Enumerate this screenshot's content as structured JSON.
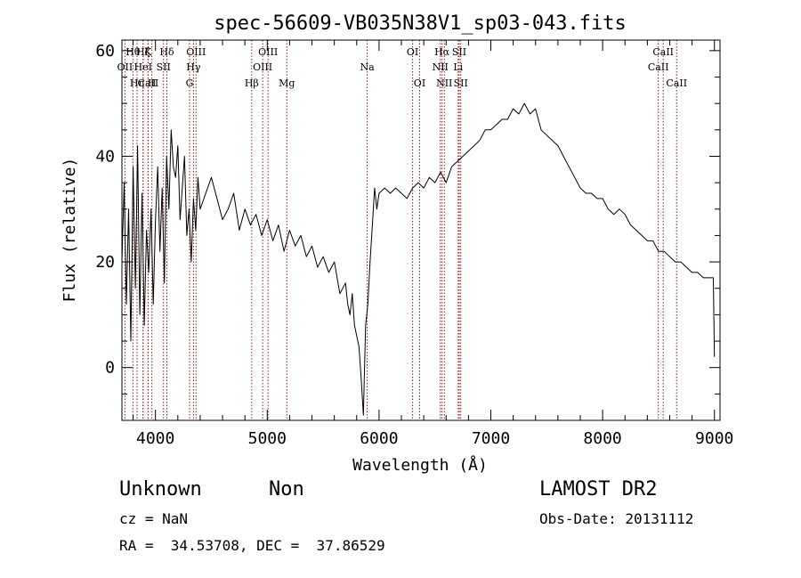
{
  "chart_data": {
    "type": "line",
    "title": "spec-56609-VB035N38V1_sp03-043.fits",
    "xlabel": "Wavelength (Å)",
    "ylabel": "Flux (relative)",
    "xlim": [
      3700,
      9050
    ],
    "ylim": [
      -10,
      62
    ],
    "x_ticks": [
      4000,
      5000,
      6000,
      7000,
      8000,
      9000
    ],
    "y_ticks": [
      0,
      20,
      40,
      60
    ],
    "x_minor_step": 200,
    "y_minor_step": 5,
    "grid": false,
    "line_color": "#000000",
    "marker_color": "#8b1a1a",
    "series": [
      {
        "x": [
          3700,
          3720,
          3740,
          3760,
          3780,
          3800,
          3820,
          3840,
          3860,
          3880,
          3900,
          3920,
          3940,
          3960,
          3980,
          4000,
          4020,
          4040,
          4060,
          4080,
          4100,
          4120,
          4140,
          4160,
          4180,
          4200,
          4220,
          4240,
          4260,
          4280,
          4300,
          4320,
          4340,
          4360,
          4380,
          4400,
          4450,
          4500,
          4550,
          4600,
          4650,
          4700,
          4750,
          4800,
          4850,
          4900,
          4950,
          5000,
          5050,
          5100,
          5150,
          5200,
          5250,
          5300,
          5350,
          5400,
          5450,
          5500,
          5550,
          5600,
          5650,
          5700,
          5720,
          5740,
          5760,
          5780,
          5800,
          5820,
          5840,
          5860,
          5880,
          5900,
          5920,
          5940,
          5960,
          5980,
          6000,
          6050,
          6100,
          6150,
          6200,
          6250,
          6300,
          6350,
          6400,
          6450,
          6500,
          6550,
          6600,
          6650,
          6700,
          6750,
          6800,
          6850,
          6900,
          6950,
          7000,
          7050,
          7100,
          7150,
          7200,
          7250,
          7300,
          7350,
          7400,
          7450,
          7500,
          7550,
          7600,
          7650,
          7700,
          7750,
          7800,
          7850,
          7900,
          7950,
          8000,
          8050,
          8100,
          8150,
          8200,
          8250,
          8300,
          8350,
          8400,
          8450,
          8500,
          8550,
          8600,
          8650,
          8700,
          8750,
          8800,
          8850,
          8900,
          8950,
          8990,
          9000
        ],
        "y": [
          20,
          35,
          12,
          30,
          5,
          38,
          15,
          42,
          10,
          33,
          8,
          26,
          18,
          30,
          12,
          28,
          38,
          22,
          34,
          16,
          40,
          30,
          45,
          38,
          36,
          42,
          28,
          34,
          40,
          25,
          30,
          20,
          32,
          26,
          36,
          30,
          33,
          36,
          32,
          28,
          30,
          33,
          26,
          30,
          27,
          29,
          25,
          28,
          24,
          27,
          22,
          26,
          23,
          25,
          21,
          23,
          19,
          21,
          18,
          20,
          14,
          16,
          12,
          10,
          14,
          8,
          6,
          4,
          -2,
          -9,
          8,
          12,
          20,
          27,
          34,
          30,
          33,
          34,
          33,
          34,
          33,
          32,
          34,
          35,
          34,
          36,
          35,
          37,
          35,
          38,
          39,
          40,
          41,
          42,
          43,
          45,
          45,
          46,
          47,
          47,
          49,
          48,
          50,
          48,
          49,
          45,
          44,
          43,
          42,
          40,
          38,
          36,
          34,
          33,
          33,
          32,
          32,
          30,
          29,
          30,
          29,
          27,
          26,
          25,
          24,
          24,
          22,
          22,
          21,
          20,
          20,
          19,
          18,
          18,
          17,
          17,
          17,
          2
        ]
      }
    ],
    "line_markers": [
      {
        "label": "Hθ",
        "x": 3798,
        "row": 1
      },
      {
        "label": "OII",
        "x": 3727,
        "row": 2
      },
      {
        "label": "CaII",
        "x": 3934,
        "row": 3
      },
      {
        "label": "Hη",
        "x": 3835,
        "row": 3
      },
      {
        "label": "Hζ",
        "x": 3889,
        "row": 1
      },
      {
        "label": "HeI",
        "x": 3889,
        "row": 2
      },
      {
        "label": "K",
        "x": 3934,
        "row": 1
      },
      {
        "label": "H",
        "x": 3968,
        "row": 3
      },
      {
        "label": "Hδ",
        "x": 4102,
        "row": 1
      },
      {
        "label": "SII",
        "x": 4072,
        "row": 2
      },
      {
        "label": "OIII",
        "x": 4363,
        "row": 1
      },
      {
        "label": "Hγ",
        "x": 4340,
        "row": 2
      },
      {
        "label": "G",
        "x": 4305,
        "row": 3
      },
      {
        "label": "Hβ",
        "x": 4861,
        "row": 3
      },
      {
        "label": "OIII",
        "x": 5007,
        "row": 1
      },
      {
        "label": "OIII",
        "x": 4959,
        "row": 2
      },
      {
        "label": "Mg",
        "x": 5175,
        "row": 3
      },
      {
        "label": "Na",
        "x": 5894,
        "row": 2
      },
      {
        "label": "OI",
        "x": 6300,
        "row": 1
      },
      {
        "label": "OI",
        "x": 6363,
        "row": 3
      },
      {
        "label": "Hα",
        "x": 6563,
        "row": 1
      },
      {
        "label": "NII",
        "x": 6548,
        "row": 2
      },
      {
        "label": "NII",
        "x": 6584,
        "row": 3
      },
      {
        "label": "SII",
        "x": 6717,
        "row": 1
      },
      {
        "label": "Li",
        "x": 6708,
        "row": 2
      },
      {
        "label": "SII",
        "x": 6731,
        "row": 3
      },
      {
        "label": "CaII",
        "x": 8542,
        "row": 1
      },
      {
        "label": "CaII",
        "x": 8498,
        "row": 2
      },
      {
        "label": "CaII",
        "x": 8662,
        "row": 3
      }
    ]
  },
  "info": {
    "class": "Unknown",
    "subclass": "Non",
    "survey": "LAMOST DR2",
    "cz": "cz = NaN",
    "obs_date": "Obs-Date: 20131112",
    "coords": "RA =  34.53708, DEC =  37.86529"
  }
}
